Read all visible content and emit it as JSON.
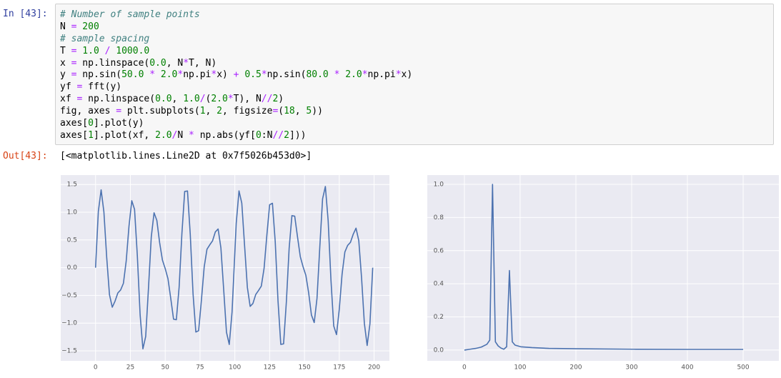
{
  "cell": {
    "in_prompt": "In [43]:",
    "out_prompt": "Out[43]:",
    "output": "[<matplotlib.lines.Line2D at 0x7f5026b453d0>]",
    "code": [
      [
        "# Number of sample points"
      ],
      [
        "N ",
        "=",
        " 200"
      ],
      [
        "# sample spacing"
      ],
      [
        "T ",
        "=",
        " 1.0 ",
        "/ ",
        "1000.0"
      ],
      [
        "x ",
        "=",
        " np.linspace(",
        "0.0",
        ", N",
        "*",
        "T, N)"
      ],
      [
        "y ",
        "=",
        " np.sin(",
        "50.0 ",
        "* ",
        "2.0",
        "*",
        "np.pi",
        "*",
        "x) ",
        "+ ",
        "0.5",
        "*",
        "np.sin(",
        "80.0 ",
        "* ",
        "2.0",
        "*",
        "np.pi",
        "*",
        "x)"
      ],
      [
        "yf ",
        "=",
        " fft(y)"
      ],
      [
        "xf ",
        "=",
        " np.linspace(",
        "0.0",
        ", ",
        "1.0",
        "/",
        "(",
        "2.0",
        "*",
        "T), N",
        "//",
        "2",
        ")"
      ],
      [
        "fig, axes ",
        "=",
        " plt.subplots(",
        "1",
        ", ",
        "2",
        ", figsize",
        "=",
        "(",
        "18",
        ", ",
        "5",
        "))"
      ],
      [
        "axes[",
        "0",
        "].plot(y)"
      ],
      [
        "axes[",
        "1",
        "].plot(xf, ",
        "2.0",
        "/",
        "N ",
        "* ",
        "np.abs(yf[",
        "0",
        ":N",
        "//",
        "2",
        "]))"
      ]
    ]
  },
  "chart_data": [
    {
      "type": "line",
      "color": "#4c72b0",
      "grid": true,
      "x": [
        0,
        2,
        4,
        6,
        8,
        10,
        12,
        14,
        16,
        18,
        20,
        22,
        24,
        26,
        28,
        30,
        32,
        34,
        36,
        38,
        40,
        42,
        44,
        46,
        48,
        50,
        52,
        54,
        56,
        58,
        60,
        62,
        64,
        66,
        68,
        70,
        72,
        74,
        76,
        78,
        80,
        82,
        84,
        86,
        88,
        90,
        92,
        94,
        96,
        98,
        101,
        103,
        105,
        107,
        109,
        111,
        113,
        115,
        117,
        119,
        121,
        123,
        125,
        127,
        129,
        131,
        133,
        135,
        137,
        139,
        141,
        143,
        145,
        147,
        149,
        151,
        153,
        155,
        157,
        159,
        161,
        163,
        165,
        167,
        169,
        171,
        173,
        175,
        177,
        179,
        181,
        183,
        185,
        187,
        189,
        191,
        193,
        195,
        197,
        199
      ],
      "values": [
        0,
        1.014,
        1.403,
        1.003,
        0.186,
        -0.487,
        -0.713,
        -0.603,
        -0.456,
        -0.402,
        -0.282,
        0.119,
        0.748,
        1.207,
        1.051,
        0.215,
        -0.849,
        -1.464,
        -1.24,
        -0.368,
        0.552,
        0.99,
        0.853,
        0.452,
        0.138,
        -0.016,
        -0.199,
        -0.555,
        -0.928,
        -0.939,
        -0.352,
        0.617,
        1.374,
        1.383,
        0.6,
        -0.471,
        -1.161,
        -1.136,
        -0.587,
        0.012,
        0.333,
        0.412,
        0.484,
        0.645,
        0.698,
        0.356,
        -0.397,
        -1.164,
        -1.384,
        -0.8,
        0.8,
        1.384,
        1.164,
        0.397,
        -0.356,
        -0.698,
        -0.645,
        -0.484,
        -0.412,
        -0.333,
        -0.012,
        0.587,
        1.136,
        1.161,
        0.471,
        -0.6,
        -1.383,
        -1.374,
        -0.617,
        0.352,
        0.939,
        0.928,
        0.555,
        0.199,
        0.016,
        -0.138,
        -0.452,
        -0.853,
        -0.99,
        -0.552,
        0.368,
        1.24,
        1.464,
        0.849,
        -0.215,
        -1.051,
        -1.207,
        -0.748,
        -0.119,
        0.282,
        0.402,
        0.456,
        0.603,
        0.713,
        0.487,
        -0.186,
        -1.003,
        -1.403,
        -1.014,
        0
      ],
      "xlim": [
        -25,
        211
      ],
      "ylim": [
        -1.68,
        1.67
      ],
      "xticks": [
        0,
        25,
        50,
        75,
        100,
        125,
        150,
        175,
        200
      ],
      "yticks": [
        {
          "value": -1.5,
          "label": "−1.5"
        },
        {
          "value": -1,
          "label": "−1.0"
        },
        {
          "value": -0.5,
          "label": "−0.5"
        },
        {
          "value": 0,
          "label": "0.0"
        },
        0.5,
        {
          "value": 1,
          "label": "1.0"
        },
        1.5
      ]
    },
    {
      "type": "line",
      "color": "#4c72b0",
      "grid": true,
      "x": [
        0,
        10.1,
        20.2,
        30.3,
        40.4,
        45.5,
        50.5,
        55.6,
        60.6,
        65.7,
        70.7,
        75.8,
        80.8,
        85.9,
        90.9,
        101,
        121.2,
        151.5,
        202,
        303,
        404,
        500
      ],
      "values": [
        0,
        0.005,
        0.01,
        0.018,
        0.035,
        0.06,
        1.0,
        0.05,
        0.025,
        0.012,
        0.005,
        0.02,
        0.48,
        0.05,
        0.03,
        0.02,
        0.015,
        0.01,
        0.008,
        0.005,
        0.004,
        0.004
      ],
      "xlim": [
        -66.5,
        564
      ],
      "ylim": [
        -0.065,
        1.056
      ],
      "xticks": [
        0,
        100,
        200,
        300,
        400,
        500
      ],
      "yticks": [
        {
          "value": 0,
          "label": "0.0"
        },
        0.2,
        0.4,
        0.6,
        0.8,
        {
          "value": 1,
          "label": "1.0"
        }
      ]
    }
  ]
}
